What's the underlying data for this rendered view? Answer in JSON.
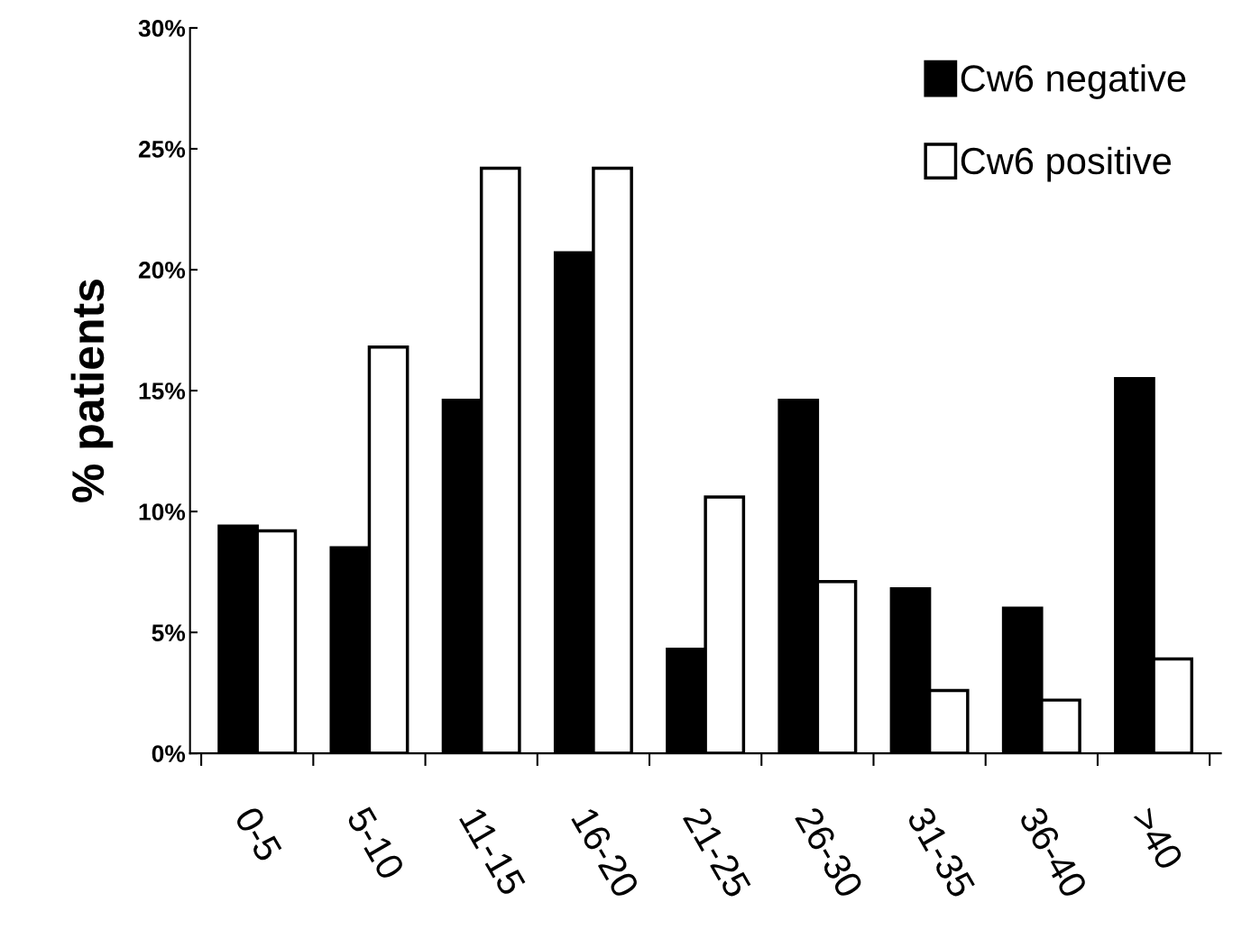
{
  "chart_data": {
    "type": "bar",
    "ylabel": "% patients",
    "categories": [
      "0-5",
      "5-10",
      "11-15",
      "16-20",
      "21-25",
      "26-30",
      "31-35",
      "36-40",
      ">40"
    ],
    "series": [
      {
        "name": "Cw6 negative",
        "color": "#000000",
        "values": [
          9.4,
          8.5,
          14.6,
          20.7,
          4.3,
          14.6,
          6.8,
          6.0,
          15.5
        ]
      },
      {
        "name": "Cw6 positive",
        "color": "#ffffff",
        "values": [
          9.2,
          16.8,
          24.2,
          24.2,
          10.6,
          7.1,
          2.6,
          2.2,
          3.9
        ]
      }
    ],
    "ylim": [
      0,
      30
    ],
    "yticks": [
      {
        "value": 0,
        "label": "0%"
      },
      {
        "value": 5,
        "label": "5%"
      },
      {
        "value": 10,
        "label": "10%"
      },
      {
        "value": 15,
        "label": "15%"
      },
      {
        "value": 20,
        "label": "20%"
      },
      {
        "value": 25,
        "label": "25%"
      },
      {
        "value": 30,
        "label": "30%"
      }
    ],
    "grid": false,
    "legend": "top right"
  }
}
